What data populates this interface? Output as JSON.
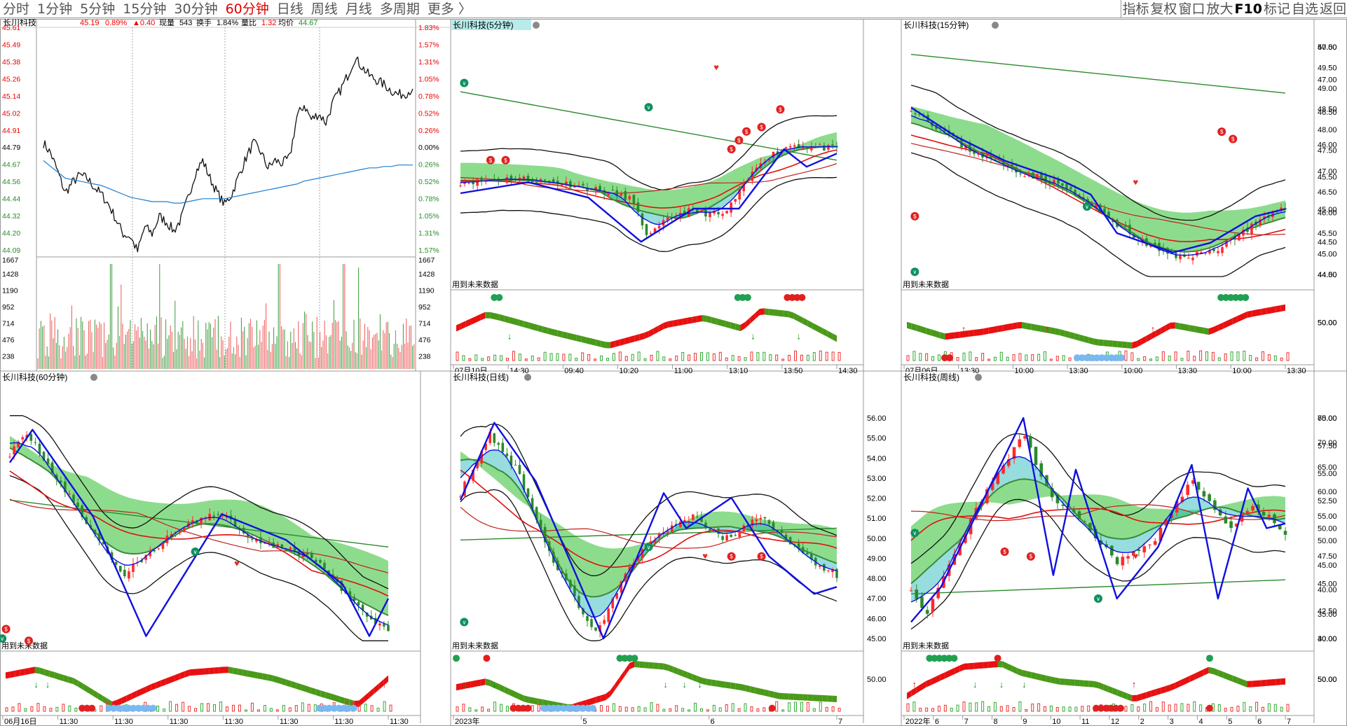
{
  "toolbar": {
    "tabs": [
      "分时",
      "1分钟",
      "5分钟",
      "15分钟",
      "30分钟",
      "60分钟",
      "日线",
      "周线",
      "月线",
      "多周期",
      "更多 〉"
    ],
    "selected_tab": "60分钟",
    "tools": [
      "指标",
      "复权",
      "窗口",
      "放大",
      "F10",
      "标记",
      "自选",
      "返回"
    ]
  },
  "intraday": {
    "title": "长川科技",
    "price": "45.19",
    "change_pct": "0.89%",
    "change": "▲0.40",
    "volume_label": "现量",
    "volume": "543",
    "turnover_label": "换手",
    "turnover": "1.84%",
    "ratio_label": "量比",
    "ratio": "1.32",
    "avg_label": "均价",
    "avg": "44.67",
    "price_ticks": [
      "45.61",
      "45.49",
      "45.38",
      "45.26",
      "45.14",
      "45.02",
      "44.91",
      "44.79",
      "44.67",
      "44.56",
      "44.44",
      "44.32",
      "44.20",
      "44.09"
    ],
    "pct_ticks": [
      "1.83%",
      "1.57%",
      "1.31%",
      "1.05%",
      "0.78%",
      "0.52%",
      "0.26%",
      "0.00%",
      "0.26%",
      "0.52%",
      "0.78%",
      "1.05%",
      "1.31%",
      "1.57%"
    ],
    "vol_ticks": [
      "1667",
      "1428",
      "1190",
      "952",
      "714",
      "476",
      "238"
    ],
    "prev_close": 44.79,
    "price_series": [
      44.82,
      44.75,
      44.62,
      44.48,
      44.55,
      44.6,
      44.58,
      44.52,
      44.47,
      44.4,
      44.3,
      44.2,
      44.18,
      44.08,
      44.25,
      44.2,
      44.32,
      44.28,
      44.22,
      44.3,
      44.45,
      44.62,
      44.7,
      44.58,
      44.48,
      44.4,
      44.47,
      44.6,
      44.72,
      44.82,
      44.76,
      44.65,
      44.7,
      44.68,
      44.72,
      45.0,
      45.08,
      44.98,
      45.02,
      44.96,
      45.1,
      45.18,
      45.28,
      45.4,
      45.34,
      45.28,
      45.25,
      45.22,
      45.18,
      45.15,
      45.16,
      45.19
    ],
    "avg_series": [
      44.7,
      44.66,
      44.62,
      44.58,
      44.57,
      44.56,
      44.55,
      44.54,
      44.53,
      44.51,
      44.49,
      44.47,
      44.45,
      44.44,
      44.43,
      44.42,
      44.42,
      44.42,
      44.41,
      44.41,
      44.42,
      44.43,
      44.44,
      44.44,
      44.44,
      44.44,
      44.45,
      44.46,
      44.47,
      44.48,
      44.49,
      44.5,
      44.51,
      44.52,
      44.53,
      44.54,
      44.56,
      44.57,
      44.58,
      44.59,
      44.6,
      44.61,
      44.62,
      44.63,
      44.64,
      44.65,
      44.65,
      44.66,
      44.66,
      44.67,
      44.67,
      44.67
    ]
  },
  "panels": [
    {
      "id": "p5",
      "title": "长川科技(5分钟)",
      "label": "用到未来数据",
      "price_ticks": [],
      "ind_ticks": [],
      "dates": [
        "07月10日",
        "14:30",
        "09:40",
        "10:20",
        "11:00",
        "13:10",
        "13:50",
        "14:30"
      ]
    },
    {
      "id": "p15",
      "title": "长川科技(15分钟)",
      "label": "用到未来数据",
      "price_ticks": [
        "47.50",
        "47.00",
        "46.50",
        "46.00",
        "45.50",
        "45.00",
        "44.50",
        "44.00"
      ],
      "ind_ticks": [
        "50.00"
      ],
      "right_ticks": [
        "50.00",
        "49.50",
        "49.00",
        "48.50",
        "48.00",
        "47.50",
        "47.00",
        "46.50",
        "46.00",
        "45.50",
        "45.00",
        "44.50"
      ],
      "right_ind": [
        "50.00"
      ],
      "dates": [
        "07月06日",
        "13:30",
        "10:00",
        "13:30",
        "10:00",
        "13:30",
        "10:00",
        "13:30"
      ]
    },
    {
      "id": "p60",
      "title": "长川科技(60分钟)",
      "label": "用到未来数据",
      "price_ticks": [],
      "ind_ticks": [],
      "dates": [
        "06月16日",
        "11:30",
        "11:30",
        "11:30",
        "11:30",
        "11:30",
        "11:30",
        "11:30"
      ]
    },
    {
      "id": "pd",
      "title": "长川科技(日线)",
      "label": "用到未来数据",
      "price_ticks": [
        "56.00",
        "55.00",
        "54.00",
        "53.00",
        "52.00",
        "51.00",
        "50.00",
        "49.00",
        "48.00",
        "47.00",
        "46.00",
        "45.00"
      ],
      "ind_ticks": [
        "50.00"
      ],
      "dates": [
        "2023年",
        "5",
        "6",
        "7"
      ]
    },
    {
      "id": "pw",
      "title": "长川科技(周线)",
      "label": "用到未来数据",
      "price_ticks": [
        "60.00",
        "57.50",
        "55.00",
        "52.50",
        "50.00",
        "47.50",
        "45.00",
        "42.50",
        "40.00"
      ],
      "ind_ticks": [
        "50.00"
      ],
      "right_ticks": [
        "75.00",
        "70.00",
        "65.00",
        "60.00",
        "55.00",
        "50.00",
        "45.00",
        "40.00",
        "35.00",
        "30.00"
      ],
      "right_ind": [
        "50.00"
      ],
      "dates": [
        "2022年",
        "6",
        "7",
        "8",
        "9",
        "10",
        "11",
        "12",
        "2",
        "3",
        "4",
        "5",
        "6",
        "7"
      ]
    }
  ],
  "colors": {
    "up": "#ff2a2a",
    "down": "#2a8a2a",
    "zig": "#1010e0",
    "avg": "#1f7fd0",
    "green_band": "#2fbf2f",
    "cyan_band": "#19b4b4"
  }
}
